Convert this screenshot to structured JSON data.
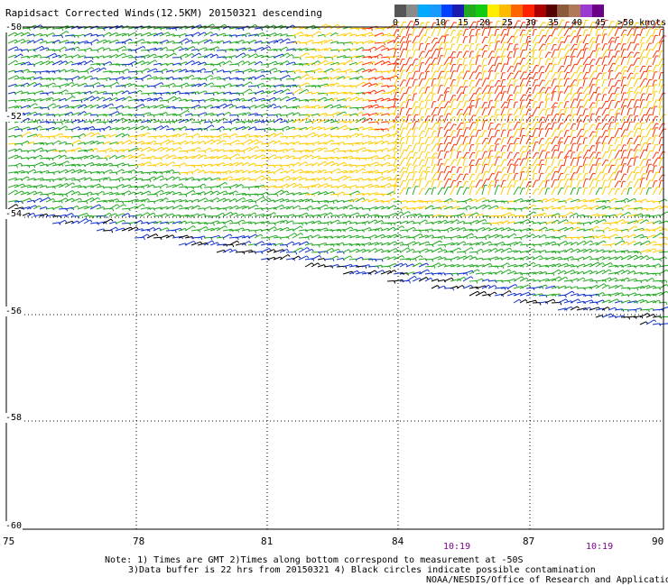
{
  "title": "Rapidsact Corrected Winds(12.5KM) 20150321 descending",
  "colorbar": {
    "colors": [
      "#555555",
      "#8a8a8a",
      "#00aaff",
      "#1a9aff",
      "#0040ff",
      "#1b1bb0",
      "#22aa22",
      "#12cc12",
      "#ffee00",
      "#ffbb00",
      "#ff6600",
      "#ff2200",
      "#aa0000",
      "#550000",
      "#8a5a3a",
      "#b07a5a",
      "#9a3ad0",
      "#6a0088"
    ],
    "labels": [
      "0",
      "5",
      "10",
      "15",
      "20",
      "25",
      "30",
      "35",
      "40",
      "45",
      ">50 knots"
    ]
  },
  "map": {
    "x_ticks": [
      "75",
      "78",
      "81",
      "84",
      "87",
      "90"
    ],
    "y_ticks": [
      "-50",
      "-52",
      "-54",
      "-56",
      "-58",
      "-60"
    ],
    "times": [
      "10:19",
      "10:19"
    ],
    "wind_colors": {
      "calm": "#1133cc",
      "light": "#22aa22",
      "moderate": "#ffcc00",
      "strong": "#ff3300",
      "contaminated": "#000000"
    }
  },
  "notes": {
    "line1": "Note: 1) Times are GMT 2)Times along bottom correspond to measurement at -50S",
    "line2": "3)Data buffer is 22 hrs from 20150321 4) Black circles indicate possible contamination",
    "line3": "NOAA/NESDIS/Office of Research and Applications"
  }
}
